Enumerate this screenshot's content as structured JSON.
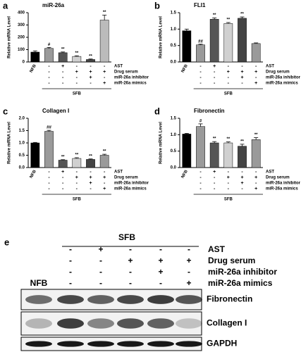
{
  "chart_data": [
    {
      "type": "bar",
      "panel": "a",
      "title": "miR-26a",
      "y_label": "Relative mRNA Level",
      "categories": [
        "NFB",
        null,
        null,
        null,
        null,
        null
      ],
      "values": [
        80,
        110,
        75,
        45,
        20,
        340
      ],
      "errors": [
        10,
        8,
        6,
        5,
        4,
        40
      ],
      "colors": [
        "#000000",
        "#9a9a9a",
        "#555555",
        "#d0d0d0",
        "#444444",
        "#bbbbbb"
      ],
      "marks": [
        null,
        "#",
        "**",
        "**",
        "**",
        "**"
      ],
      "ylim": [
        0,
        400
      ],
      "yticks": [
        0,
        100,
        200,
        300,
        400
      ],
      "group": "SFB",
      "conditions": [
        {
          "name": "AST",
          "signs": [
            "-",
            "+",
            "-",
            "-",
            "-"
          ]
        },
        {
          "name": "Drug serum",
          "signs": [
            "-",
            "-",
            "+",
            "+",
            "+"
          ]
        },
        {
          "name": "miR-26a inhibitor",
          "signs": [
            "-",
            "-",
            "-",
            "+",
            "-"
          ]
        },
        {
          "name": "miR-26a mimics",
          "signs": [
            "-",
            "-",
            "-",
            "-",
            "+"
          ]
        }
      ]
    },
    {
      "type": "bar",
      "panel": "b",
      "title": "FLI1",
      "y_label": "Relative mRNA Level",
      "categories": [
        "NFB",
        null,
        null,
        null,
        null,
        null
      ],
      "values": [
        0.95,
        0.52,
        1.3,
        1.17,
        1.33,
        0.56
      ],
      "errors": [
        0.05,
        0.02,
        0.04,
        0.03,
        0.04,
        0.02
      ],
      "colors": [
        "#000000",
        "#9a9a9a",
        "#555555",
        "#d0d0d0",
        "#444444",
        "#9a9a9a"
      ],
      "marks": [
        null,
        "##",
        "**",
        "**",
        "**",
        null
      ],
      "ylim": [
        0,
        1.5
      ],
      "yticks": [
        {
          "value": 0,
          "label": "0.0"
        },
        {
          "value": 0.5,
          "label": "0.5"
        },
        {
          "value": 1,
          "label": "1.0"
        },
        1.5
      ],
      "group": "SFB",
      "conditions": [
        {
          "name": "AST",
          "signs": [
            "-",
            "+",
            "-",
            "-",
            "-"
          ]
        },
        {
          "name": "Drug serum",
          "signs": [
            "-",
            "-",
            "+",
            "+",
            "+"
          ]
        },
        {
          "name": "miR-26a inhibitor",
          "signs": [
            "-",
            "-",
            "-",
            "+",
            "-"
          ]
        },
        {
          "name": "miR-26a mimics",
          "signs": [
            "-",
            "-",
            "-",
            "-",
            "+"
          ]
        }
      ]
    },
    {
      "type": "bar",
      "panel": "c",
      "title": "Collagen I",
      "y_label": "Relative mRNA Level",
      "categories": [
        "NFB",
        null,
        null,
        null,
        null,
        null
      ],
      "values": [
        1.0,
        1.47,
        0.3,
        0.37,
        0.33,
        0.5
      ],
      "errors": [
        0.02,
        0.04,
        0.02,
        0.03,
        0.02,
        0.04
      ],
      "colors": [
        "#000000",
        "#9a9a9a",
        "#555555",
        "#d0d0d0",
        "#444444",
        "#9a9a9a"
      ],
      "marks": [
        null,
        "##",
        "**",
        "**",
        "**",
        "**"
      ],
      "ylim": [
        0,
        2
      ],
      "yticks": [
        {
          "value": 0,
          "label": "0.0"
        },
        {
          "value": 0.5,
          "label": "0.5"
        },
        {
          "value": 1,
          "label": "1.0"
        },
        1.5,
        {
          "value": 2,
          "label": "2.0"
        }
      ],
      "group": "SFB",
      "conditions": [
        {
          "name": "AST",
          "signs": [
            "-",
            "+",
            "-",
            "-",
            "-"
          ]
        },
        {
          "name": "Drug serum",
          "signs": [
            "-",
            "-",
            "+",
            "+",
            "+"
          ]
        },
        {
          "name": "miR-26a inhibitor",
          "signs": [
            "-",
            "-",
            "-",
            "+",
            "-"
          ]
        },
        {
          "name": "miR-26a mimics",
          "signs": [
            "-",
            "-",
            "-",
            "-",
            "+"
          ]
        }
      ]
    },
    {
      "type": "bar",
      "panel": "d",
      "title": "Fibronectin",
      "y_label": "Relative mRNA Level",
      "categories": [
        "NFB",
        null,
        null,
        null,
        null,
        null
      ],
      "values": [
        1.02,
        1.25,
        0.75,
        0.75,
        0.65,
        0.85
      ],
      "errors": [
        0.02,
        0.08,
        0.04,
        0.03,
        0.06,
        0.06
      ],
      "colors": [
        "#000000",
        "#9a9a9a",
        "#555555",
        "#d0d0d0",
        "#444444",
        "#9a9a9a"
      ],
      "marks": [
        null,
        "#",
        "**",
        "**",
        "**",
        "**"
      ],
      "ylim": [
        0,
        1.5
      ],
      "yticks": [
        {
          "value": 0,
          "label": "0.0"
        },
        {
          "value": 0.5,
          "label": "0.5"
        },
        {
          "value": 1,
          "label": "1.0"
        },
        1.5
      ],
      "group": "SFB",
      "conditions": [
        {
          "name": "AST",
          "signs": [
            "-",
            "+",
            "-",
            "-",
            "-"
          ]
        },
        {
          "name": "Drug serum",
          "signs": [
            "-",
            "-",
            "+",
            "+",
            "+"
          ]
        },
        {
          "name": "miR-26a inhibitor",
          "signs": [
            "-",
            "-",
            "-",
            "+",
            "-"
          ]
        },
        {
          "name": "miR-26a mimics",
          "signs": [
            "-",
            "-",
            "-",
            "-",
            "+"
          ]
        }
      ]
    }
  ],
  "blot": {
    "panel": "e",
    "group": "SFB",
    "control": "NFB",
    "conditions": [
      {
        "name": "AST",
        "signs": [
          "-",
          "+",
          "-",
          "-",
          "-"
        ]
      },
      {
        "name": "Drug serum",
        "signs": [
          "-",
          "-",
          "+",
          "+",
          "+"
        ]
      },
      {
        "name": "miR-26a inhibitor",
        "signs": [
          "-",
          "-",
          "-",
          "+",
          "-"
        ]
      },
      {
        "name": "miR-26a mimics",
        "signs": [
          "-",
          "-",
          "-",
          "-",
          "+"
        ]
      }
    ],
    "bands": [
      "Fibronectin",
      "Collagen I",
      "GAPDH"
    ]
  }
}
